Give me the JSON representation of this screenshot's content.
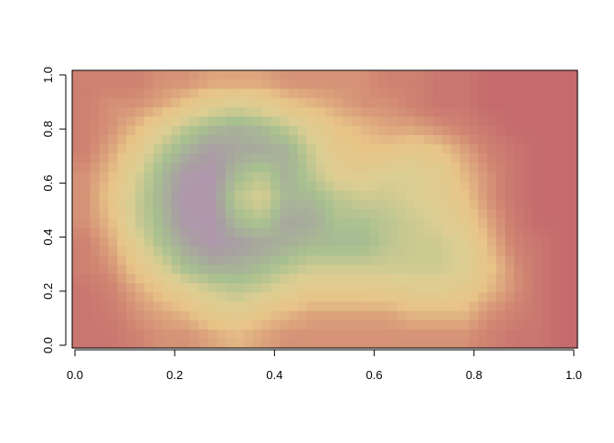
{
  "chart_data": {
    "type": "heatmap",
    "title": "",
    "xlabel": "",
    "ylabel": "",
    "xlim": [
      0,
      1
    ],
    "ylim": [
      0,
      1
    ],
    "x_ticks": [
      "0.0",
      "0.2",
      "0.4",
      "0.6",
      "0.8",
      "1.0"
    ],
    "y_ticks": [
      "0.0",
      "0.2",
      "0.4",
      "0.6",
      "0.8",
      "1.0"
    ],
    "grid": false,
    "legend": "none",
    "palette": [
      "#C0606C",
      "#D08572",
      "#E8C488",
      "#DCCE92",
      "#A8C090",
      "#A8A0A2",
      "#B88CB8"
    ],
    "z_rows_top_to_bottom": [
      [
        0.15,
        0.15,
        0.15,
        0.2,
        0.2,
        0.25,
        0.25,
        0.25,
        0.2,
        0.2,
        0.2,
        0.2,
        0.15,
        0.15,
        0.1,
        0.1,
        0.05,
        0.05,
        0.05,
        0.05
      ],
      [
        0.15,
        0.2,
        0.2,
        0.25,
        0.35,
        0.45,
        0.5,
        0.45,
        0.35,
        0.3,
        0.25,
        0.2,
        0.2,
        0.15,
        0.1,
        0.1,
        0.05,
        0.05,
        0.05,
        0.05
      ],
      [
        0.15,
        0.2,
        0.3,
        0.45,
        0.6,
        0.7,
        0.75,
        0.7,
        0.6,
        0.45,
        0.35,
        0.3,
        0.25,
        0.25,
        0.2,
        0.15,
        0.1,
        0.05,
        0.05,
        0.05
      ],
      [
        0.15,
        0.25,
        0.4,
        0.6,
        0.75,
        0.85,
        0.8,
        0.78,
        0.75,
        0.55,
        0.4,
        0.35,
        0.35,
        0.4,
        0.35,
        0.25,
        0.15,
        0.1,
        0.05,
        0.05
      ],
      [
        0.2,
        0.3,
        0.5,
        0.7,
        0.88,
        0.92,
        0.7,
        0.6,
        0.75,
        0.6,
        0.45,
        0.45,
        0.5,
        0.5,
        0.45,
        0.3,
        0.2,
        0.1,
        0.05,
        0.05
      ],
      [
        0.2,
        0.35,
        0.55,
        0.72,
        0.92,
        0.9,
        0.6,
        0.5,
        0.72,
        0.7,
        0.6,
        0.55,
        0.55,
        0.5,
        0.45,
        0.35,
        0.2,
        0.1,
        0.05,
        0.05
      ],
      [
        0.2,
        0.3,
        0.55,
        0.7,
        0.9,
        0.92,
        0.7,
        0.62,
        0.8,
        0.78,
        0.65,
        0.65,
        0.6,
        0.55,
        0.5,
        0.4,
        0.25,
        0.12,
        0.05,
        0.05
      ],
      [
        0.15,
        0.25,
        0.45,
        0.65,
        0.8,
        0.9,
        0.85,
        0.8,
        0.75,
        0.7,
        0.7,
        0.7,
        0.6,
        0.55,
        0.55,
        0.48,
        0.3,
        0.15,
        0.1,
        0.05
      ],
      [
        0.15,
        0.2,
        0.35,
        0.5,
        0.68,
        0.75,
        0.75,
        0.7,
        0.62,
        0.55,
        0.55,
        0.55,
        0.55,
        0.55,
        0.55,
        0.5,
        0.35,
        0.2,
        0.1,
        0.05
      ],
      [
        0.1,
        0.15,
        0.25,
        0.35,
        0.45,
        0.55,
        0.6,
        0.55,
        0.45,
        0.4,
        0.4,
        0.4,
        0.42,
        0.45,
        0.45,
        0.4,
        0.3,
        0.2,
        0.1,
        0.05
      ],
      [
        0.1,
        0.12,
        0.2,
        0.25,
        0.3,
        0.4,
        0.45,
        0.35,
        0.3,
        0.25,
        0.25,
        0.25,
        0.25,
        0.3,
        0.3,
        0.3,
        0.2,
        0.15,
        0.1,
        0.05
      ],
      [
        0.1,
        0.1,
        0.15,
        0.2,
        0.2,
        0.25,
        0.3,
        0.25,
        0.2,
        0.2,
        0.2,
        0.2,
        0.2,
        0.2,
        0.2,
        0.2,
        0.15,
        0.1,
        0.1,
        0.05
      ]
    ]
  }
}
